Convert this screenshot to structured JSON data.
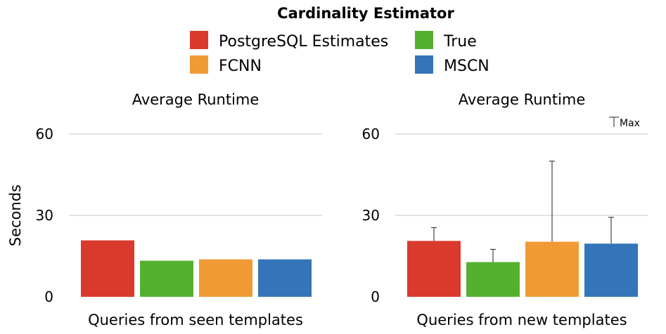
{
  "legend": {
    "title": "Cardinality Estimator",
    "entries": [
      {
        "label": "PostgreSQL Estimates",
        "color": "#d93a2b"
      },
      {
        "label": "True",
        "color": "#55b030"
      },
      {
        "label": "FCNN",
        "color": "#f09a36"
      },
      {
        "label": "MSCN",
        "color": "#3475b9"
      }
    ]
  },
  "max_label": "Max",
  "ylabel": "Seconds",
  "chart_data": [
    {
      "type": "bar",
      "title": "Average Runtime",
      "xlabel": "Queries from seen templates",
      "ylabel": "Seconds",
      "ylim": [
        0,
        60
      ],
      "yticks": [
        0,
        30,
        60
      ],
      "grid": true,
      "categories": [
        "PostgreSQL Estimates",
        "True",
        "FCNN",
        "MSCN"
      ],
      "values": [
        20.8,
        13.3,
        13.8,
        13.8
      ],
      "error_max": null
    },
    {
      "type": "bar",
      "title": "Average Runtime",
      "xlabel": "Queries from new templates",
      "ylabel": "Seconds",
      "ylim": [
        0,
        60
      ],
      "yticks": [
        0,
        30,
        60
      ],
      "grid": true,
      "categories": [
        "PostgreSQL Estimates",
        "True",
        "FCNN",
        "MSCN"
      ],
      "values": [
        20.6,
        12.8,
        20.3,
        19.6
      ],
      "error_max": [
        25.5,
        17.5,
        50.0,
        29.3
      ]
    }
  ]
}
